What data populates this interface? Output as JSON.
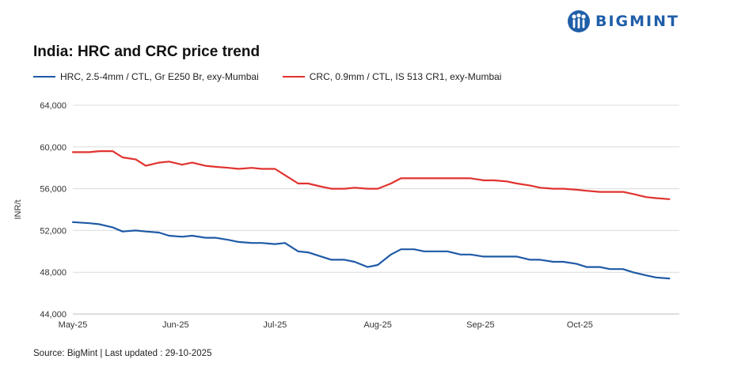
{
  "brand": {
    "name": "BIGMINT",
    "color": "#1f5ea8"
  },
  "chart_data": {
    "type": "line",
    "title": "India: HRC and CRC price trend",
    "xlabel": "",
    "ylabel": "INR/t",
    "ylim": [
      44000,
      64000
    ],
    "yticks": [
      44000,
      48000,
      52000,
      56000,
      60000,
      64000
    ],
    "ytick_labels": [
      "44,000",
      "48,000",
      "52,000",
      "56,000",
      "60,000",
      "64,000"
    ],
    "x": [
      "2025-05-01",
      "2025-05-06",
      "2025-05-09",
      "2025-05-13",
      "2025-05-16",
      "2025-05-20",
      "2025-05-23",
      "2025-05-27",
      "2025-05-30",
      "2025-06-03",
      "2025-06-06",
      "2025-06-10",
      "2025-06-13",
      "2025-06-17",
      "2025-06-20",
      "2025-06-24",
      "2025-06-27",
      "2025-07-01",
      "2025-07-04",
      "2025-07-08",
      "2025-07-11",
      "2025-07-15",
      "2025-07-18",
      "2025-07-22",
      "2025-07-25",
      "2025-07-29",
      "2025-08-01",
      "2025-08-05",
      "2025-08-08",
      "2025-08-12",
      "2025-08-15",
      "2025-08-19",
      "2025-08-22",
      "2025-08-26",
      "2025-08-29",
      "2025-09-02",
      "2025-09-05",
      "2025-09-09",
      "2025-09-12",
      "2025-09-16",
      "2025-09-19",
      "2025-09-23",
      "2025-09-26",
      "2025-09-30",
      "2025-10-03",
      "2025-10-07",
      "2025-10-10",
      "2025-10-14",
      "2025-10-17",
      "2025-10-21",
      "2025-10-24",
      "2025-10-28"
    ],
    "xtick_dates": [
      "2025-05-01",
      "2025-06-01",
      "2025-07-01",
      "2025-08-01",
      "2025-09-01",
      "2025-10-01"
    ],
    "xtick_labels": [
      "May-25",
      "Jun-25",
      "Jul-25",
      "Aug-25",
      "Sep-25",
      "Oct-25"
    ],
    "series": [
      {
        "name": "HRC, 2.5-4mm / CTL, Gr E250 Br, exy-Mumbai",
        "color": "#1f5aa6",
        "values": [
          52800,
          52700,
          52600,
          52300,
          51900,
          52000,
          51900,
          51800,
          51500,
          51400,
          51500,
          51300,
          51300,
          51100,
          50900,
          50800,
          50800,
          50700,
          50800,
          50000,
          49900,
          49500,
          49200,
          49200,
          49000,
          48500,
          48700,
          49700,
          50200,
          50200,
          50000,
          50000,
          50000,
          49700,
          49700,
          49500,
          49500,
          49500,
          49500,
          49200,
          49200,
          49000,
          49000,
          48800,
          48500,
          48500,
          48300,
          48300,
          48000,
          47700,
          47500,
          47400
        ]
      },
      {
        "name": "CRC, 0.9mm / CTL, IS 513 CR1, exy-Mumbai",
        "color": "#e0332f",
        "values": [
          59500,
          59500,
          59600,
          59600,
          59000,
          58800,
          58200,
          58500,
          58600,
          58300,
          58500,
          58200,
          58100,
          58000,
          57900,
          58000,
          57900,
          57900,
          57300,
          56500,
          56500,
          56200,
          56000,
          56000,
          56100,
          56000,
          56000,
          56500,
          57000,
          57000,
          57000,
          57000,
          57000,
          57000,
          57000,
          56800,
          56800,
          56700,
          56500,
          56300,
          56100,
          56000,
          56000,
          55900,
          55800,
          55700,
          55700,
          55700,
          55500,
          55200,
          55100,
          55000
        ]
      }
    ],
    "grid": true,
    "legend_position": "top-left"
  },
  "source_text": "Source: BigMint | Last updated : 29-10-2025"
}
